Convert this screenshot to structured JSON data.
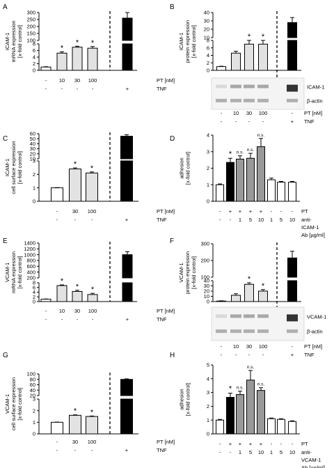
{
  "chart_data": [
    {
      "type": "bar",
      "panel": "A",
      "ylabel": [
        "ICAM-1",
        "mRNA expression",
        "[x-fold control]"
      ],
      "yticks": [
        "0",
        "2",
        "4",
        "6",
        "8",
        "100",
        "150",
        "200",
        "250",
        "300"
      ],
      "ylim_lower": [
        0,
        8
      ],
      "ylim_upper": [
        100,
        300
      ],
      "categories": [
        "-",
        "10",
        "30",
        "100",
        "TNF"
      ],
      "values": [
        1.0,
        5.2,
        7.0,
        6.7,
        260
      ],
      "errors": [
        0.1,
        0.4,
        0.3,
        0.5,
        40
      ],
      "colors": [
        "#ffffff",
        "#e2e2e2",
        "#e2e2e2",
        "#e2e2e2",
        "#000000"
      ],
      "stars": [
        false,
        true,
        true,
        true,
        false
      ],
      "xrows": [
        {
          "label": "PT [nM]",
          "cells": [
            "-",
            "10",
            "30",
            "100",
            ""
          ]
        },
        {
          "label": "TNF",
          "cells": [
            "-",
            "-",
            "-",
            "-",
            "+"
          ]
        }
      ]
    },
    {
      "type": "bar",
      "panel": "B",
      "ylabel": [
        "ICAM-1",
        "protein expression",
        "[x-fold control]"
      ],
      "yticks": [
        "0",
        "2",
        "4",
        "6",
        "8",
        "10",
        "20",
        "30",
        "40"
      ],
      "ylim_lower": [
        0,
        8
      ],
      "ylim_upper": [
        10,
        40
      ],
      "categories": [
        "-",
        "10",
        "30",
        "100",
        "TNF"
      ],
      "values": [
        1.0,
        4.6,
        7.0,
        7.0,
        28
      ],
      "errors": [
        0.1,
        0.5,
        1.4,
        1.4,
        6
      ],
      "colors": [
        "#ffffff",
        "#e2e2e2",
        "#e2e2e2",
        "#e2e2e2",
        "#000000"
      ],
      "stars": [
        false,
        false,
        true,
        true,
        false
      ],
      "blot_labels": [
        "ICAM-1",
        "β-actin"
      ],
      "xrows": [
        {
          "label": "PT [nM]",
          "cells": [
            "-",
            "10",
            "30",
            "100",
            "-"
          ]
        },
        {
          "label": "TNF",
          "cells": [
            "-",
            "-",
            "-",
            "-",
            "+"
          ]
        }
      ]
    },
    {
      "type": "bar",
      "panel": "C",
      "ylabel": [
        "ICAM-1",
        "cell surface expression",
        "[x-fold control]"
      ],
      "yticks": [
        "0",
        "1",
        "2",
        "3",
        "10",
        "20",
        "30",
        "40",
        "50",
        "60"
      ],
      "ylim_lower": [
        0,
        3
      ],
      "ylim_upper": [
        10,
        60
      ],
      "categories": [
        "-",
        "30",
        "100",
        "TNF"
      ],
      "values": [
        1.0,
        2.4,
        2.1,
        55
      ],
      "errors": [
        0.02,
        0.08,
        0.08,
        3
      ],
      "colors": [
        "#ffffff",
        "#e2e2e2",
        "#e2e2e2",
        "#000000"
      ],
      "stars": [
        false,
        true,
        true,
        false
      ],
      "xrows": [
        {
          "label": "PT [nM]",
          "cells": [
            "-",
            "30",
            "100",
            ""
          ]
        },
        {
          "label": "TNF",
          "cells": [
            "-",
            "-",
            "-",
            "+"
          ]
        }
      ]
    },
    {
      "type": "bar",
      "panel": "D",
      "ylabel": [
        "adhesion",
        "[x-fold control]"
      ],
      "yticks": [
        "0",
        "1",
        "2",
        "3",
        "4"
      ],
      "ylim": [
        0,
        4
      ],
      "values": [
        1.0,
        2.35,
        2.55,
        2.6,
        3.3,
        1.3,
        1.15,
        1.15
      ],
      "errors": [
        0.05,
        0.25,
        0.2,
        0.3,
        0.5,
        0.1,
        0.05,
        0.05
      ],
      "colors": [
        "#ffffff",
        "#000000",
        "#999999",
        "#999999",
        "#999999",
        "#ffffff",
        "#ffffff",
        "#ffffff"
      ],
      "annotations": [
        "",
        "*",
        "n.s.",
        "n.s.",
        "n.s.",
        "",
        "",
        ""
      ],
      "xrows": [
        {
          "label": "PT",
          "cells": [
            "-",
            "+",
            "+",
            "+",
            "+",
            "-",
            "-",
            "-"
          ]
        },
        {
          "label": "anti-",
          "cells": [
            "-",
            "-",
            "1",
            "5",
            "10",
            "1",
            "5",
            "10"
          ]
        },
        {
          "label": "ICAM-1",
          "cells": []
        },
        {
          "label": "Ab [µg/ml]",
          "cells": []
        }
      ]
    },
    {
      "type": "bar",
      "panel": "E",
      "ylabel": [
        "VCAM-1",
        "mRNA expression",
        "[x-fold control]"
      ],
      "yticks": [
        "0",
        "2",
        "4",
        "6",
        "8",
        "200",
        "400",
        "600",
        "800",
        "1000",
        "1200",
        "1400"
      ],
      "ylim_lower": [
        0,
        8
      ],
      "ylim_upper": [
        200,
        1400
      ],
      "categories": [
        "-",
        "10",
        "30",
        "100",
        "TNF"
      ],
      "values": [
        1.0,
        6.8,
        4.3,
        3.0,
        1000
      ],
      "errors": [
        0.1,
        0.3,
        0.5,
        0.5,
        100
      ],
      "colors": [
        "#ffffff",
        "#e2e2e2",
        "#e2e2e2",
        "#e2e2e2",
        "#000000"
      ],
      "stars": [
        false,
        true,
        true,
        true,
        false
      ],
      "xrows": [
        {
          "label": "PT [nM]",
          "cells": [
            "-",
            "10",
            "30",
            "100",
            ""
          ]
        },
        {
          "label": "TNF",
          "cells": [
            "-",
            "-",
            "-",
            "-",
            "+"
          ]
        }
      ]
    },
    {
      "type": "bar",
      "panel": "F",
      "ylabel": [
        "VCAM-1",
        "protein expression",
        "[x-fold control]"
      ],
      "yticks": [
        "0",
        "10",
        "20",
        "30",
        "40",
        "100",
        "200",
        "300"
      ],
      "ylim_lower": [
        0,
        40
      ],
      "ylim_upper": [
        100,
        300
      ],
      "categories": [
        "-",
        "10",
        "30",
        "100",
        "TNF"
      ],
      "values": [
        1.0,
        12,
        33,
        20,
        215
      ],
      "errors": [
        0.5,
        3,
        3,
        3,
        40
      ],
      "colors": [
        "#ffffff",
        "#e2e2e2",
        "#e2e2e2",
        "#e2e2e2",
        "#000000"
      ],
      "stars": [
        false,
        false,
        true,
        true,
        false
      ],
      "blot_labels": [
        "VCAM-1",
        "β-actin"
      ],
      "xrows": [
        {
          "label": "PT [nM]",
          "cells": [
            "-",
            "10",
            "30",
            "100",
            "-"
          ]
        },
        {
          "label": "TNF",
          "cells": [
            "-",
            "-",
            "-",
            "-",
            "+"
          ]
        }
      ]
    },
    {
      "type": "bar",
      "panel": "G",
      "ylabel": [
        "VCAM-1",
        "cell surface expression",
        "[x-fold control]"
      ],
      "yticks": [
        "0",
        "1",
        "2",
        "3",
        "20",
        "40",
        "60",
        "80",
        "100"
      ],
      "ylim_lower": [
        0,
        3
      ],
      "ylim_upper": [
        20,
        100
      ],
      "categories": [
        "-",
        "30",
        "100",
        "TNF"
      ],
      "values": [
        1.0,
        1.6,
        1.5,
        80
      ],
      "errors": [
        0.02,
        0.04,
        0.04,
        2
      ],
      "colors": [
        "#ffffff",
        "#e2e2e2",
        "#e2e2e2",
        "#000000"
      ],
      "stars": [
        false,
        true,
        true,
        false
      ],
      "xrows": [
        {
          "label": "PT [nM]",
          "cells": [
            "-",
            "30",
            "100",
            ""
          ]
        },
        {
          "label": "TNF",
          "cells": [
            "-",
            "-",
            "-",
            "+"
          ]
        }
      ]
    },
    {
      "type": "bar",
      "panel": "H",
      "ylabel": [
        "adhesion",
        "[x-fold control]"
      ],
      "yticks": [
        "0",
        "1",
        "2",
        "3",
        "4",
        "5"
      ],
      "ylim": [
        0,
        5
      ],
      "values": [
        1.0,
        2.65,
        2.85,
        3.9,
        3.15,
        1.1,
        1.05,
        0.9
      ],
      "errors": [
        0.05,
        0.3,
        0.25,
        0.7,
        0.2,
        0.05,
        0.05,
        0.05
      ],
      "colors": [
        "#ffffff",
        "#000000",
        "#999999",
        "#999999",
        "#999999",
        "#ffffff",
        "#ffffff",
        "#ffffff"
      ],
      "annotations": [
        "",
        "*",
        "n.s.",
        "n.s.",
        "n.s.",
        "",
        "",
        ""
      ],
      "xrows": [
        {
          "label": "PT",
          "cells": [
            "-",
            "+",
            "+",
            "+",
            "+",
            "-",
            "-",
            "-"
          ]
        },
        {
          "label": "anti-",
          "cells": [
            "-",
            "-",
            "1",
            "5",
            "10",
            "1",
            "5",
            "10"
          ]
        },
        {
          "label": "VCAM-1",
          "cells": []
        },
        {
          "label": "Ab [µg/ml]",
          "cells": []
        }
      ]
    }
  ]
}
